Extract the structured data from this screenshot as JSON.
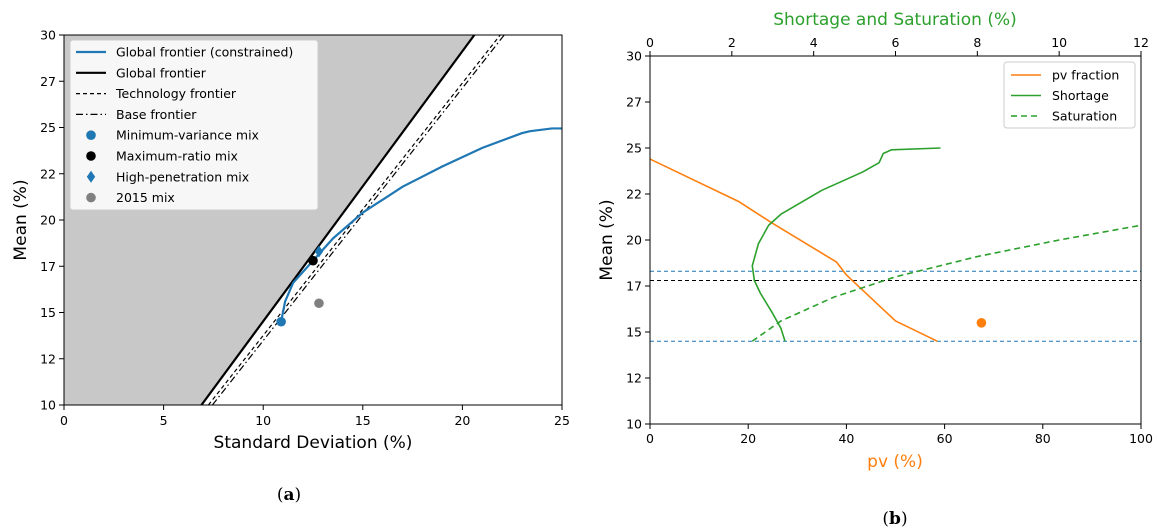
{
  "chart_data": [
    {
      "type": "line",
      "panel_label": "a",
      "xlabel": "Standard Deviation (%)",
      "ylabel": "Mean (%)",
      "xlim": [
        0,
        25
      ],
      "ylim": [
        10,
        30
      ],
      "xticks": [
        "0",
        "5",
        "10",
        "15",
        "20",
        "25"
      ],
      "yticks": [
        "10",
        "12",
        "15",
        "17",
        "20",
        "22",
        "25",
        "27",
        "30"
      ],
      "ytick_values": [
        10,
        12.5,
        15,
        17.5,
        20,
        22.5,
        25,
        27.5,
        30
      ],
      "grid": false,
      "legend_position": "top-left",
      "shaded_region": "above global frontier",
      "colors": {
        "blue": "#1f77b4",
        "black": "#000000",
        "gray": "#808080",
        "shade": "#c8c8c8"
      },
      "series": [
        {
          "name": "Global frontier (constrained)",
          "style": "solid-blue",
          "x": [
            10.9,
            11.1,
            11.5,
            12.5,
            13.5,
            15.0,
            17.0,
            19.0,
            21.0,
            23.0,
            23.4,
            24.5,
            25.0
          ],
          "y": [
            14.5,
            15.6,
            16.6,
            17.8,
            19.0,
            20.4,
            21.8,
            22.9,
            23.9,
            24.7,
            24.8,
            24.95,
            24.95
          ]
        },
        {
          "name": "Global frontier",
          "style": "solid-black",
          "x": [
            6.9,
            20.6
          ],
          "y": [
            10,
            30
          ]
        },
        {
          "name": "Technology frontier",
          "style": "dashed-black",
          "x": [
            7.25,
            21.9
          ],
          "y": [
            10,
            30
          ]
        },
        {
          "name": "Base frontier",
          "style": "dashdot-black",
          "x": [
            7.45,
            22.1
          ],
          "y": [
            10,
            30
          ]
        },
        {
          "name": "Minimum-variance mix",
          "style": "marker-circle-blue",
          "x": [
            10.9
          ],
          "y": [
            14.5
          ]
        },
        {
          "name": "Maximum-ratio mix",
          "style": "marker-circle-black",
          "x": [
            12.5
          ],
          "y": [
            17.8
          ]
        },
        {
          "name": "High-penetration mix",
          "style": "marker-diamond-blue",
          "x": [
            12.8
          ],
          "y": [
            18.3
          ]
        },
        {
          "name": "2015 mix",
          "style": "marker-circle-gray",
          "x": [
            12.8
          ],
          "y": [
            15.5
          ]
        }
      ]
    },
    {
      "type": "line",
      "panel_label": "b",
      "xlabel": "pv (%)",
      "x2label": "Shortage and Saturation (%)",
      "ylabel": "Mean (%)",
      "xlim": [
        0,
        100
      ],
      "x2lim": [
        0,
        12
      ],
      "ylim": [
        10,
        30
      ],
      "xticks": [
        "0",
        "20",
        "40",
        "60",
        "80",
        "100"
      ],
      "x2ticks": [
        "0",
        "2",
        "4",
        "6",
        "8",
        "10",
        "12"
      ],
      "yticks": [
        "10",
        "12",
        "15",
        "17",
        "20",
        "22",
        "25",
        "27",
        "30"
      ],
      "ytick_values": [
        10,
        12.5,
        15,
        17.5,
        20,
        22.5,
        25,
        27.5,
        30
      ],
      "grid": false,
      "legend_position": "top-right",
      "colors": {
        "orange": "#ff7f0e",
        "green": "#2ca02c",
        "blue": "#1f77b4",
        "black": "#000000"
      },
      "hlines": [
        {
          "y": 18.3,
          "color": "#1f77b4"
        },
        {
          "y": 17.8,
          "color": "#000000"
        },
        {
          "y": 14.5,
          "color": "#1f77b4"
        }
      ],
      "series": [
        {
          "name": "pv fraction",
          "axis": "bottom",
          "style": "solid-orange",
          "x": [
            0,
            18,
            25,
            38,
            40,
            50,
            58.5
          ],
          "y": [
            24.4,
            22.1,
            20.9,
            18.8,
            18.1,
            15.6,
            14.5
          ]
        },
        {
          "name": "Shortage",
          "axis": "top",
          "style": "solid-green",
          "x": [
            3.3,
            3.2,
            3.0,
            2.7,
            2.55,
            2.5,
            2.65,
            2.9,
            3.2,
            4.2,
            5.2,
            5.6,
            5.7,
            5.9,
            7.1
          ],
          "y": [
            14.5,
            15.2,
            16.0,
            17.1,
            17.8,
            18.6,
            19.8,
            20.8,
            21.4,
            22.7,
            23.7,
            24.2,
            24.7,
            24.9,
            25.0
          ]
        },
        {
          "name": "Saturation",
          "axis": "top",
          "style": "dashed-green",
          "x": [
            2.5,
            3.2,
            4.5,
            6.0,
            8.0,
            10.0,
            12.0
          ],
          "y": [
            14.5,
            15.6,
            16.9,
            18.0,
            19.1,
            20.0,
            20.8
          ]
        },
        {
          "name": "",
          "axis": "bottom",
          "style": "marker-circle-orange",
          "x": [
            67.5
          ],
          "y": [
            15.5
          ]
        }
      ]
    }
  ],
  "captions": {
    "a": "a",
    "b": "b"
  }
}
